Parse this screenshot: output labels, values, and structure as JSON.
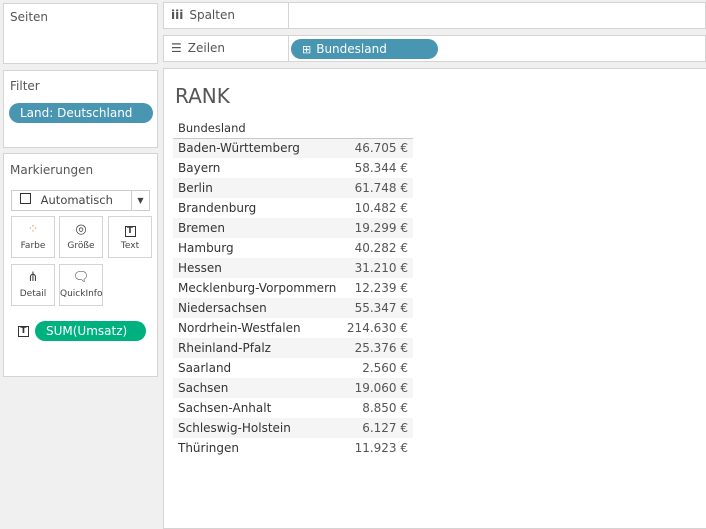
{
  "pages": {
    "title": "Seiten"
  },
  "filter": {
    "title": "Filter",
    "pill": "Land: Deutschland"
  },
  "marks": {
    "title": "Markierungen",
    "type": "Automatisch",
    "buttons": [
      "Farbe",
      "Größe",
      "Text",
      "Detail",
      "QuickInfo"
    ],
    "field": "SUM(Umsatz)"
  },
  "shelves": {
    "columns": "Spalten",
    "rows": "Zeilen",
    "rows_pill": "Bundesland"
  },
  "colors": {
    "dimension": "#4996b2",
    "measure": "#00b180",
    "filter": "#4996b2"
  },
  "view": {
    "title": "RANK",
    "header": "Bundesland",
    "rows": [
      [
        "Baden-Württemberg",
        "46.705 €"
      ],
      [
        "Bayern",
        "58.344 €"
      ],
      [
        "Berlin",
        "61.748 €"
      ],
      [
        "Brandenburg",
        "10.482 €"
      ],
      [
        "Bremen",
        "19.299 €"
      ],
      [
        "Hamburg",
        "40.282 €"
      ],
      [
        "Hessen",
        "31.210 €"
      ],
      [
        "Mecklenburg-Vorpommern",
        "12.239 €"
      ],
      [
        "Niedersachsen",
        "55.347 €"
      ],
      [
        "Nordrhein-Westfalen",
        "214.630 €"
      ],
      [
        "Rheinland-Pfalz",
        "25.376 €"
      ],
      [
        "Saarland",
        "2.560 €"
      ],
      [
        "Sachsen",
        "19.060 €"
      ],
      [
        "Sachsen-Anhalt",
        "8.850 €"
      ],
      [
        "Schleswig-Holstein",
        "6.127 €"
      ],
      [
        "Thüringen",
        "11.923 €"
      ]
    ]
  }
}
